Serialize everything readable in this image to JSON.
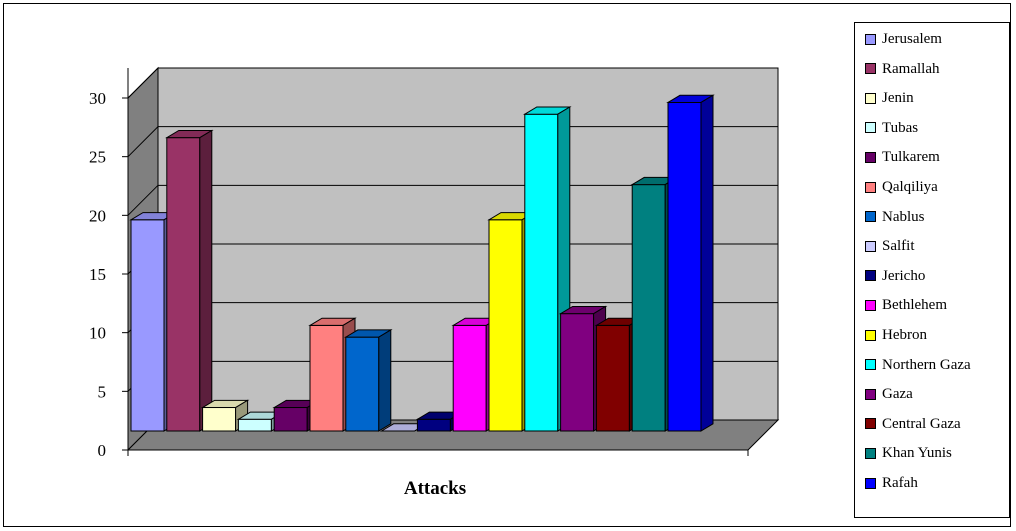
{
  "chart_data": {
    "type": "bar",
    "title": "",
    "xlabel": "Attacks",
    "ylabel": "",
    "ylim": [
      0,
      30
    ],
    "yticks": [
      0,
      5,
      10,
      15,
      20,
      25,
      30
    ],
    "grid": true,
    "legend_position": "right",
    "series": [
      {
        "name": "Jerusalem",
        "value": 18,
        "color": "#9999ff"
      },
      {
        "name": "Ramallah",
        "value": 25,
        "color": "#993366"
      },
      {
        "name": "Jenin",
        "value": 2,
        "color": "#ffffcc"
      },
      {
        "name": "Tubas",
        "value": 1,
        "color": "#ccffff"
      },
      {
        "name": "Tulkarem",
        "value": 2,
        "color": "#660066"
      },
      {
        "name": "Qalqiliya",
        "value": 9,
        "color": "#ff8080"
      },
      {
        "name": "Nablus",
        "value": 8,
        "color": "#0066cc"
      },
      {
        "name": "Salfit",
        "value": 0,
        "color": "#ccccff"
      },
      {
        "name": "Jericho",
        "value": 1,
        "color": "#000080"
      },
      {
        "name": "Bethlehem",
        "value": 9,
        "color": "#ff00ff"
      },
      {
        "name": "Hebron",
        "value": 18,
        "color": "#ffff00"
      },
      {
        "name": "Northern Gaza",
        "value": 27,
        "color": "#00ffff"
      },
      {
        "name": "Gaza",
        "value": 10,
        "color": "#800080"
      },
      {
        "name": "Central Gaza",
        "value": 9,
        "color": "#800000"
      },
      {
        "name": "Khan Yunis",
        "value": 21,
        "color": "#008080"
      },
      {
        "name": "Rafah",
        "value": 28,
        "color": "#0000ff"
      }
    ]
  }
}
